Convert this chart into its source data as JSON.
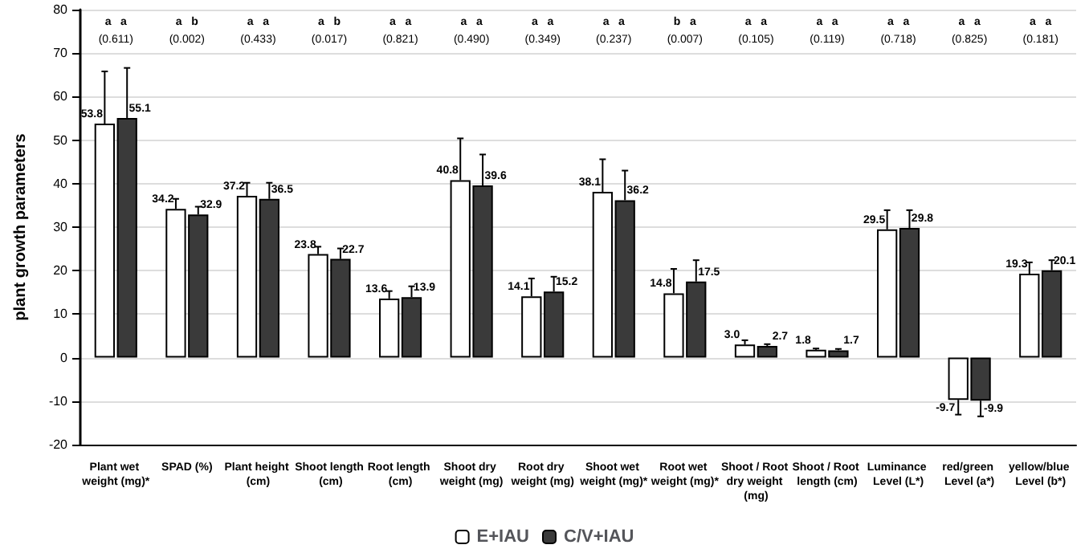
{
  "chart_data": {
    "type": "bar",
    "categories": [
      "Plant wet weight (mg)*",
      "SPAD (%)",
      "Plant height (cm)",
      "Shoot length (cm)",
      "Root length (cm)",
      "Shoot dry weight (mg)",
      "Root dry weight (mg)",
      "Shoot wet weight (mg)*",
      "Root wet weight (mg)*",
      "Shoot / Root dry weight (mg)",
      "Shoot / Root length (cm)",
      "Luminance Level (L*)",
      "red/green Level (a*)",
      "yellow/blue Level (b*)"
    ],
    "series": [
      {
        "name": "E+IAU",
        "color": "#ffffff",
        "values": [
          53.8,
          34.2,
          37.2,
          23.8,
          13.6,
          40.8,
          14.1,
          38.1,
          14.8,
          3.0,
          1.8,
          29.5,
          -9.7,
          19.3
        ],
        "value_labels": [
          "53.8",
          "34.2",
          "37.2",
          "23.8",
          "13.6",
          "40.8",
          "14.1",
          "38.1",
          "14.8",
          "3.0",
          "1.8",
          "29.5",
          "-9.7",
          "19.3"
        ],
        "errors": [
          12,
          2.3,
          3,
          1.7,
          1.7,
          9.6,
          4.1,
          7.5,
          5.6,
          1,
          0.3,
          4.4,
          3.4,
          2.6
        ]
      },
      {
        "name": "C/V+IAU",
        "color": "#3a3a3a",
        "values": [
          55.1,
          32.9,
          36.5,
          22.7,
          13.9,
          39.6,
          15.2,
          36.2,
          17.5,
          2.7,
          1.7,
          29.8,
          -9.9,
          20.1
        ],
        "value_labels": [
          "55.1",
          "32.9",
          "36.5",
          "22.7",
          "13.9",
          "39.6",
          "15.2",
          "36.2",
          "17.5",
          "2.7",
          "1.7",
          "29.8",
          "-9.9",
          "20.1"
        ],
        "errors": [
          11.5,
          1.8,
          3.7,
          2.4,
          2.5,
          7.1,
          3.4,
          6.8,
          4.9,
          0.4,
          0.3,
          4.1,
          3.6,
          2.3
        ]
      }
    ],
    "ylabel": "plant growth parameters",
    "ylim": [
      -20,
      80
    ],
    "yticks": [
      -20,
      -10,
      0,
      10,
      20,
      30,
      40,
      50,
      60,
      70,
      80
    ],
    "grid": "y",
    "legend": "bottom",
    "annotations": [
      "a   a",
      "(0.611)",
      "a   b",
      "(0.002)",
      "a   a",
      "(0.433)",
      "a   b",
      "(0.017)",
      "a   a",
      "(0.821)",
      "a   a",
      "(0.490)",
      "a   a",
      "(0.349)",
      "a   a",
      "(0.237)",
      "b   a",
      "(0.007)",
      "a   a",
      "(0.105)",
      "a   a",
      "(0.119)",
      "a   a",
      "(0.718)",
      "a   a",
      "(0.825)",
      "a   a",
      "(0.181)"
    ]
  }
}
